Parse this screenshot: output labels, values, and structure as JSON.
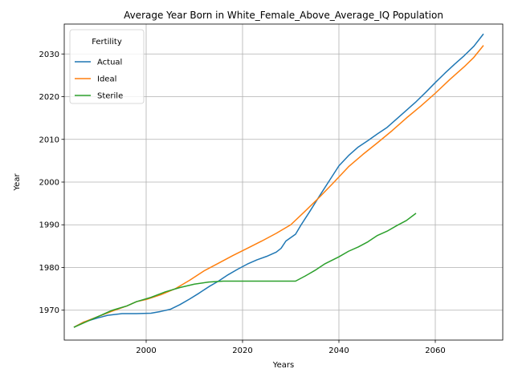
{
  "chart_data": {
    "type": "line",
    "title": "Average Year Born in White_Female_Above_Average_IQ Population",
    "xlabel": "Years",
    "ylabel": "Year",
    "xlim": [
      1983,
      2074
    ],
    "ylim": [
      1963,
      2037
    ],
    "xticks": [
      2000,
      2020,
      2040,
      2060
    ],
    "yticks": [
      1970,
      1980,
      1990,
      2000,
      2010,
      2020,
      2030
    ],
    "grid": true,
    "legend": {
      "title": "Fertility",
      "position": "top-left"
    },
    "series": [
      {
        "name": "Actual",
        "color": "#1f77b4",
        "points": [
          [
            1985,
            1966
          ],
          [
            1987,
            1967.2
          ],
          [
            1990,
            1968.2
          ],
          [
            1992,
            1968.8
          ],
          [
            1995,
            1969.2
          ],
          [
            1998,
            1969.2
          ],
          [
            2001,
            1969.3
          ],
          [
            2003,
            1969.7
          ],
          [
            2005,
            1970.2
          ],
          [
            2007,
            1971.3
          ],
          [
            2009,
            1972.6
          ],
          [
            2011,
            1974
          ],
          [
            2013,
            1975.5
          ],
          [
            2015,
            1976.8
          ],
          [
            2017,
            1978.3
          ],
          [
            2019,
            1979.6
          ],
          [
            2021,
            1980.8
          ],
          [
            2023,
            1981.8
          ],
          [
            2025,
            1982.6
          ],
          [
            2027,
            1983.6
          ],
          [
            2028,
            1984.5
          ],
          [
            2029,
            1986.2
          ],
          [
            2031,
            1987.8
          ],
          [
            2032,
            1989.7
          ],
          [
            2034,
            1993.2
          ],
          [
            2036,
            1996.8
          ],
          [
            2038,
            2000.3
          ],
          [
            2040,
            2003.8
          ],
          [
            2042,
            2006.2
          ],
          [
            2044,
            2008.2
          ],
          [
            2046,
            2009.7
          ],
          [
            2048,
            2011.3
          ],
          [
            2050,
            2012.8
          ],
          [
            2052,
            2014.8
          ],
          [
            2054,
            2016.8
          ],
          [
            2056,
            2018.8
          ],
          [
            2058,
            2021
          ],
          [
            2060,
            2023.3
          ],
          [
            2062,
            2025.5
          ],
          [
            2064,
            2027.6
          ],
          [
            2066,
            2029.6
          ],
          [
            2068,
            2031.8
          ],
          [
            2070,
            2034.7
          ]
        ]
      },
      {
        "name": "Ideal",
        "color": "#ff7f0e",
        "points": [
          [
            1985,
            1966
          ],
          [
            1987,
            1967.2
          ],
          [
            1990,
            1968.5
          ],
          [
            1993,
            1969.8
          ],
          [
            1996,
            1971
          ],
          [
            1998,
            1972
          ],
          [
            2000,
            1972.5
          ],
          [
            2003,
            1973.6
          ],
          [
            2006,
            1975
          ],
          [
            2009,
            1977
          ],
          [
            2012,
            1979.2
          ],
          [
            2015,
            1981
          ],
          [
            2018,
            1982.8
          ],
          [
            2021,
            1984.5
          ],
          [
            2024,
            1986.2
          ],
          [
            2027,
            1988
          ],
          [
            2030,
            1990
          ],
          [
            2033,
            1993.2
          ],
          [
            2036,
            1996.5
          ],
          [
            2039,
            2000
          ],
          [
            2042,
            2003.6
          ],
          [
            2045,
            2006.5
          ],
          [
            2048,
            2009.2
          ],
          [
            2051,
            2012
          ],
          [
            2054,
            2015
          ],
          [
            2057,
            2017.8
          ],
          [
            2060,
            2020.8
          ],
          [
            2063,
            2024
          ],
          [
            2066,
            2027
          ],
          [
            2068,
            2029.2
          ],
          [
            2070,
            2032
          ]
        ]
      },
      {
        "name": "Sterile",
        "color": "#2ca02c",
        "points": [
          [
            1985,
            1966
          ],
          [
            1987,
            1967
          ],
          [
            1990,
            1968.5
          ],
          [
            1993,
            1970
          ],
          [
            1996,
            1971
          ],
          [
            1998,
            1972
          ],
          [
            2001,
            1973
          ],
          [
            2004,
            1974.3
          ],
          [
            2007,
            1975.3
          ],
          [
            2010,
            1976.1
          ],
          [
            2013,
            1976.6
          ],
          [
            2016,
            1976.8
          ],
          [
            2020,
            1976.8
          ],
          [
            2025,
            1976.8
          ],
          [
            2031,
            1976.8
          ],
          [
            2033,
            1978
          ],
          [
            2035,
            1979.3
          ],
          [
            2037,
            1980.8
          ],
          [
            2040,
            1982.5
          ],
          [
            2042,
            1983.8
          ],
          [
            2044,
            1984.8
          ],
          [
            2046,
            1986
          ],
          [
            2048,
            1987.5
          ],
          [
            2050,
            1988.5
          ],
          [
            2052,
            1989.8
          ],
          [
            2054,
            1991
          ],
          [
            2056,
            1992.7
          ]
        ]
      }
    ]
  }
}
